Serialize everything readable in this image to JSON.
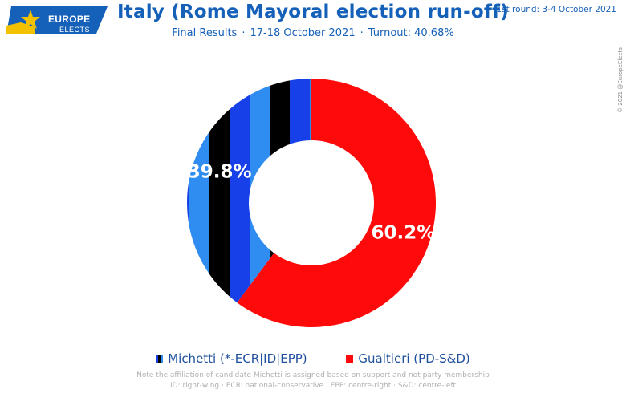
{
  "header": {
    "logo_line1": "EUROPE",
    "logo_line2": "ELECTS",
    "title": "Italy (Rome Mayoral election run-off)",
    "subtitle_results": "Final Results",
    "subtitle_dates": "17-18 October 2021",
    "subtitle_turnout": "Turnout: 40.68%",
    "first_round": "1st round: 3-4 October 2021",
    "copyright": "© 2021 @EuropeElects"
  },
  "chart_data": {
    "type": "pie",
    "variant": "donut",
    "categories": [
      "Gualtieri (PD-S&D)",
      "Michetti (*-ECR|ID|EPP)"
    ],
    "values": [
      60.2,
      39.8
    ],
    "value_labels": [
      "60.2%",
      "39.8%"
    ],
    "colors": [
      "#ff0a0a",
      "striped:#1740e8,#000000,#2f8cf0"
    ],
    "start": "12 o'clock, clockwise"
  },
  "legend": {
    "items": [
      {
        "label": "Michetti (*-ECR|ID|EPP)"
      },
      {
        "label": "Gualtieri (PD-S&D)"
      }
    ]
  },
  "notes": {
    "line1": "Note the affiliation of candidate Michetti is assigned based on support and not party membership",
    "line2": "ID: right-wing · ECR: national-conservative · EPP: centre-right · S&D: centre-left"
  },
  "colors": {
    "brand_blue": "#1560b8",
    "gualtieri_red": "#ff0a0a",
    "michetti_blue": "#1740e8",
    "michetti_black": "#000000",
    "michetti_lightblue": "#2f8cf0"
  }
}
